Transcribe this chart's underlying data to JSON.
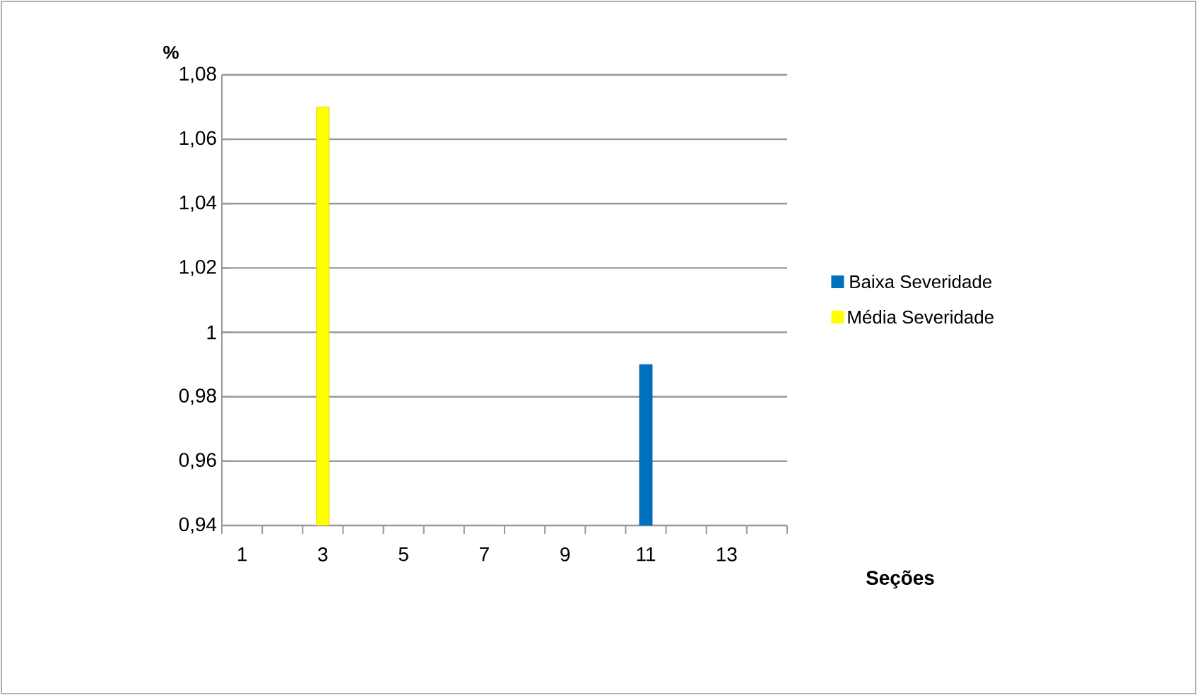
{
  "chart_data": {
    "type": "bar",
    "ylabel": "%",
    "xlabel": "Seções",
    "categories": [
      "1",
      null,
      "3",
      null,
      "5",
      null,
      "7",
      null,
      "9",
      null,
      "11",
      null,
      "13",
      null
    ],
    "series": [
      {
        "name": "Baixa Severidade",
        "color": "#0070c0",
        "values": [
          null,
          null,
          null,
          null,
          null,
          null,
          null,
          null,
          null,
          null,
          0.99,
          null,
          null,
          null
        ]
      },
      {
        "name": "Média Severidade",
        "color": "#ffff00",
        "values": [
          null,
          null,
          1.07,
          null,
          null,
          null,
          null,
          null,
          null,
          null,
          null,
          null,
          null,
          null
        ]
      }
    ],
    "ylim": [
      0.94,
      1.08
    ],
    "yticks": [
      {
        "value": 0.94,
        "label": "0,94"
      },
      {
        "value": 0.96,
        "label": "0,96"
      },
      {
        "value": 0.98,
        "label": "0,98"
      },
      {
        "value": 1,
        "label": "1"
      },
      {
        "value": 1.02,
        "label": "1,02"
      },
      {
        "value": 1.04,
        "label": "1,04"
      },
      {
        "value": 1.06,
        "label": "1,06"
      },
      {
        "value": 1.08,
        "label": "1,08"
      }
    ],
    "grid": "y",
    "legend": "right"
  }
}
